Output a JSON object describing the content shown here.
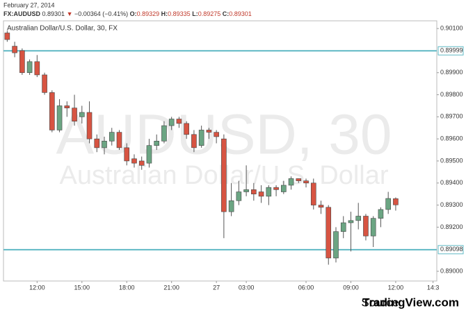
{
  "chart_data": {
    "type": "candlestick",
    "header": {
      "date": "February 27, 2014",
      "symbol": "FX:AUDUSD",
      "last": "0.89301",
      "arrow": "▼",
      "change": "−0.00364 (−0.41%)",
      "o_label": "O:",
      "o": "0.89329",
      "h_label": "H:",
      "h": "0.89335",
      "l_label": "L:",
      "l": "0.89275",
      "c_label": "C:",
      "c": "0.89301"
    },
    "title": "Australian Dollar/U.S. Dollar, 30, FX",
    "watermark": "AUDUSD, 30",
    "watermark_subtitle": "Australian Dollar/U.S. Dollar",
    "source_label": "Source:",
    "source": "TradingView.com",
    "up_color": "#6ba583",
    "down_color": "#d75442",
    "ylim": [
      0.88956,
      0.90135
    ],
    "yticks": [
      {
        "value": 0.89,
        "label": "0.89000"
      },
      {
        "value": 0.892,
        "label": "0.89200"
      },
      {
        "value": 0.893,
        "label": "0.89300"
      },
      {
        "value": 0.894,
        "label": "0.89400"
      },
      {
        "value": 0.895,
        "label": "0.89500"
      },
      {
        "value": 0.896,
        "label": "0.89600"
      },
      {
        "value": 0.897,
        "label": "0.89700"
      },
      {
        "value": 0.898,
        "label": "0.89800"
      },
      {
        "value": 0.899,
        "label": "0.89900"
      },
      {
        "value": 0.901,
        "label": "0.90100"
      }
    ],
    "hlines": [
      {
        "value": 0.89999,
        "label": "0.89999",
        "color": "#5fb8c4"
      },
      {
        "value": 0.89098,
        "label": "0.89098",
        "color": "#5fb8c4"
      }
    ],
    "categories": [
      null,
      null,
      null,
      null,
      "12:00",
      null,
      null,
      null,
      null,
      null,
      "15:00",
      null,
      null,
      null,
      null,
      null,
      "18:00",
      null,
      null,
      null,
      null,
      null,
      "21:00",
      null,
      null,
      null,
      null,
      null,
      "27",
      null,
      null,
      null,
      "03:00",
      null,
      null,
      null,
      null,
      null,
      null,
      null,
      "06:00",
      null,
      null,
      null,
      null,
      null,
      "09:00",
      null,
      null,
      null,
      null,
      null,
      "12:00",
      null,
      null,
      null,
      null,
      "14:3"
    ],
    "open": [
      0.9008,
      0.9002,
      0.9,
      0.899,
      0.8995,
      0.8989,
      0.8981,
      0.8964,
      0.8975,
      0.8974,
      0.897,
      0.8972,
      0.896,
      0.8956,
      0.8959,
      0.8963,
      0.8956,
      0.8951,
      0.895,
      0.8949,
      0.8957,
      0.8959,
      0.8966,
      0.8969,
      0.8967,
      0.8962,
      0.8957,
      0.8964,
      0.8963,
      0.896,
      0.8927,
      0.8932,
      0.8936,
      0.8937,
      0.8936,
      0.8934,
      0.8938,
      0.8936,
      0.8939,
      0.8942,
      0.8941,
      0.894,
      0.893,
      0.8929,
      0.8906,
      0.8918,
      0.8922,
      0.8923,
      0.8925,
      0.8916,
      0.8924,
      0.8928,
      0.89329,
      null,
      null,
      null,
      null,
      null
    ],
    "high": [
      0.9009,
      0.9004,
      0.9001,
      0.8996,
      0.8998,
      0.899,
      0.8982,
      0.8978,
      0.8977,
      0.898,
      0.8975,
      0.8977,
      0.8962,
      0.8961,
      0.8965,
      0.8964,
      0.8958,
      0.8953,
      0.8952,
      0.896,
      0.8962,
      0.8968,
      0.897,
      0.897,
      0.8968,
      0.8964,
      0.8966,
      0.8965,
      0.8964,
      0.8962,
      0.894,
      0.8941,
      0.8948,
      0.894,
      0.8939,
      0.8939,
      0.8939,
      0.8941,
      0.8943,
      0.8942,
      0.8942,
      0.8942,
      0.8932,
      0.893,
      0.892,
      0.8925,
      0.8927,
      0.8931,
      0.8926,
      0.8925,
      0.8929,
      0.8936,
      0.89335,
      null,
      null,
      null,
      null,
      null
    ],
    "low": [
      0.9004,
      0.8997,
      0.8989,
      0.8989,
      0.8988,
      0.898,
      0.8963,
      0.8963,
      0.897,
      0.8966,
      0.8967,
      0.8958,
      0.8954,
      0.8953,
      0.8957,
      0.8955,
      0.8948,
      0.8947,
      0.8946,
      0.8947,
      0.8955,
      0.8958,
      0.8964,
      0.8965,
      0.896,
      0.8954,
      0.8956,
      0.896,
      0.8958,
      0.8915,
      0.8925,
      0.893,
      0.8934,
      0.8932,
      0.8931,
      0.893,
      0.8934,
      0.8935,
      0.8937,
      0.894,
      0.8938,
      0.8928,
      0.8926,
      0.8903,
      0.8904,
      0.8915,
      0.8909,
      0.8919,
      0.8914,
      0.8911,
      0.892,
      0.8926,
      0.89275,
      null,
      null,
      null,
      null,
      null
    ],
    "close": [
      0.9005,
      0.8999,
      0.899,
      0.8995,
      0.8989,
      0.8981,
      0.8964,
      0.8975,
      0.8974,
      0.8968,
      0.8972,
      0.896,
      0.8956,
      0.8959,
      0.8963,
      0.8956,
      0.895,
      0.8949,
      0.8948,
      0.8957,
      0.8959,
      0.8966,
      0.8969,
      0.8967,
      0.8962,
      0.8956,
      0.8964,
      0.8963,
      0.8961,
      0.8927,
      0.8932,
      0.8936,
      0.8937,
      0.8935,
      0.8934,
      0.8938,
      0.8937,
      0.8939,
      0.8942,
      0.8941,
      0.894,
      0.893,
      0.8929,
      0.8906,
      0.8918,
      0.8922,
      0.8923,
      0.8925,
      0.8916,
      0.8924,
      0.8928,
      0.8933,
      0.89301,
      null,
      null,
      null,
      null,
      null
    ]
  }
}
